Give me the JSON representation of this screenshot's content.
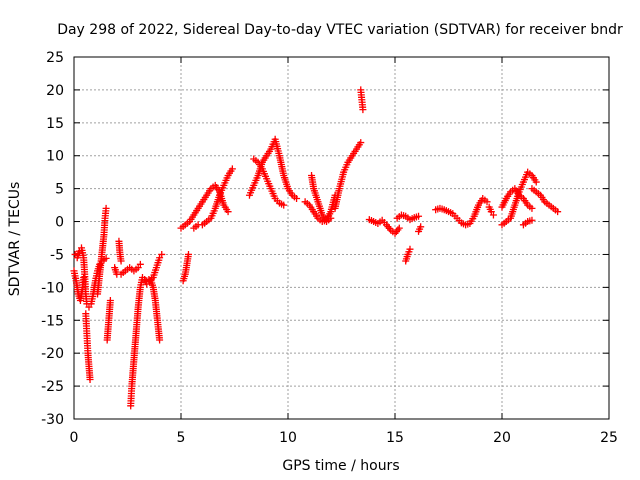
{
  "chart_data": {
    "type": "scatter",
    "title": "Day 298 of 2022, Sidereal Day-to-day VTEC variation (SDTVAR) for receiver bndr",
    "xlabel": "GPS time / hours",
    "ylabel": "SDTVAR / TECUs",
    "xlim": [
      0,
      25
    ],
    "ylim": [
      -30,
      25
    ],
    "xticks": [
      0,
      5,
      10,
      15,
      20,
      25
    ],
    "yticks": [
      -30,
      -25,
      -20,
      -15,
      -10,
      -5,
      0,
      5,
      10,
      15,
      20,
      25
    ],
    "grid": true,
    "marker": "+",
    "color": "#ff0000",
    "segments": [
      {
        "name": "s1",
        "points": [
          [
            0.0,
            -7.5
          ],
          [
            0.1,
            -9
          ],
          [
            0.2,
            -11
          ],
          [
            0.3,
            -12
          ],
          [
            0.4,
            -10
          ],
          [
            0.45,
            -8.5
          ]
        ]
      },
      {
        "name": "s2",
        "points": [
          [
            0.05,
            -5
          ],
          [
            0.15,
            -5.5
          ],
          [
            0.25,
            -4.5
          ],
          [
            0.35,
            -4
          ],
          [
            0.45,
            -5.5
          ],
          [
            0.5,
            -8
          ],
          [
            0.55,
            -11
          ],
          [
            0.6,
            -12.5
          ],
          [
            0.7,
            -13
          ],
          [
            0.8,
            -12.5
          ],
          [
            0.9,
            -11
          ],
          [
            1.0,
            -9
          ],
          [
            1.1,
            -7.5
          ],
          [
            1.2,
            -6.5
          ],
          [
            1.3,
            -6
          ],
          [
            1.4,
            -5.8
          ],
          [
            1.5,
            -5.6
          ]
        ]
      },
      {
        "name": "s3",
        "points": [
          [
            0.55,
            -14
          ],
          [
            0.6,
            -17
          ],
          [
            0.65,
            -20
          ],
          [
            0.7,
            -22
          ],
          [
            0.75,
            -24
          ]
        ]
      },
      {
        "name": "s4",
        "points": [
          [
            1.1,
            -11
          ],
          [
            1.2,
            -8
          ],
          [
            1.3,
            -5
          ],
          [
            1.4,
            -2
          ],
          [
            1.45,
            0.5
          ],
          [
            1.5,
            2
          ]
        ]
      },
      {
        "name": "s5",
        "points": [
          [
            1.55,
            -18
          ],
          [
            1.6,
            -16
          ],
          [
            1.65,
            -14
          ],
          [
            1.7,
            -12
          ]
        ]
      },
      {
        "name": "s6",
        "points": [
          [
            1.9,
            -7
          ],
          [
            2.0,
            -8
          ],
          [
            2.2,
            -8
          ],
          [
            2.4,
            -7.5
          ],
          [
            2.6,
            -7
          ],
          [
            2.8,
            -7.5
          ],
          [
            3.0,
            -7
          ],
          [
            3.1,
            -6.5
          ]
        ]
      },
      {
        "name": "s7",
        "points": [
          [
            2.1,
            -3
          ],
          [
            2.15,
            -5
          ],
          [
            2.2,
            -6
          ]
        ]
      },
      {
        "name": "s8",
        "points": [
          [
            2.65,
            -28
          ],
          [
            2.7,
            -25
          ],
          [
            2.8,
            -21
          ],
          [
            2.9,
            -17
          ],
          [
            3.0,
            -13
          ],
          [
            3.1,
            -10
          ],
          [
            3.2,
            -8.5
          ],
          [
            3.3,
            -8.8
          ],
          [
            3.4,
            -9.5
          ]
        ]
      },
      {
        "name": "s9",
        "points": [
          [
            3.4,
            -9
          ],
          [
            3.5,
            -8.8
          ],
          [
            3.6,
            -9
          ],
          [
            3.7,
            -10
          ],
          [
            3.8,
            -12
          ],
          [
            3.9,
            -15
          ],
          [
            4.0,
            -18
          ]
        ]
      },
      {
        "name": "s10",
        "points": [
          [
            3.55,
            -9
          ],
          [
            3.7,
            -8.5
          ],
          [
            3.85,
            -7
          ],
          [
            4.0,
            -5.5
          ],
          [
            4.1,
            -5
          ]
        ]
      },
      {
        "name": "s11",
        "points": [
          [
            5.0,
            -1.0
          ],
          [
            5.2,
            -0.5
          ],
          [
            5.4,
            0
          ],
          [
            5.6,
            1
          ],
          [
            5.8,
            2
          ],
          [
            6.0,
            3
          ],
          [
            6.2,
            4
          ],
          [
            6.4,
            5
          ],
          [
            6.6,
            5.5
          ],
          [
            6.8,
            4.5
          ],
          [
            7.0,
            2.5
          ],
          [
            7.2,
            1.5
          ]
        ]
      },
      {
        "name": "s12",
        "points": [
          [
            5.6,
            -1
          ],
          [
            5.8,
            -0.5
          ],
          [
            6.0,
            -0.5
          ],
          [
            6.2,
            0
          ],
          [
            6.4,
            0.5
          ],
          [
            6.6,
            2
          ],
          [
            6.8,
            4
          ],
          [
            7.0,
            5.5
          ],
          [
            7.2,
            7
          ],
          [
            7.4,
            8
          ]
        ]
      },
      {
        "name": "s13",
        "points": [
          [
            5.1,
            -9
          ],
          [
            5.2,
            -8
          ],
          [
            5.3,
            -6
          ],
          [
            5.35,
            -5
          ]
        ]
      },
      {
        "name": "s14",
        "points": [
          [
            8.2,
            4
          ],
          [
            8.4,
            5.5
          ],
          [
            8.6,
            7
          ],
          [
            8.8,
            9
          ],
          [
            9.0,
            10
          ],
          [
            9.2,
            11
          ],
          [
            9.4,
            12.5
          ],
          [
            9.6,
            10
          ],
          [
            9.8,
            7
          ],
          [
            10.0,
            5
          ],
          [
            10.2,
            4
          ],
          [
            10.4,
            3.5
          ]
        ]
      },
      {
        "name": "s15",
        "points": [
          [
            8.4,
            9.5
          ],
          [
            8.6,
            9
          ],
          [
            8.8,
            8
          ],
          [
            9.0,
            6.5
          ],
          [
            9.2,
            5
          ],
          [
            9.4,
            3.5
          ],
          [
            9.6,
            2.8
          ],
          [
            9.8,
            2.5
          ]
        ]
      },
      {
        "name": "s16",
        "points": [
          [
            10.8,
            3.0
          ],
          [
            11.0,
            2.5
          ],
          [
            11.2,
            1.5
          ],
          [
            11.4,
            0.5
          ],
          [
            11.6,
            0
          ],
          [
            11.8,
            0.2
          ],
          [
            12.0,
            1.5
          ],
          [
            12.2,
            4
          ]
        ]
      },
      {
        "name": "s17",
        "points": [
          [
            11.1,
            7
          ],
          [
            11.2,
            5
          ],
          [
            11.4,
            3
          ],
          [
            11.6,
            1
          ],
          [
            11.8,
            0
          ],
          [
            12.0,
            0.5
          ]
        ]
      },
      {
        "name": "s18",
        "points": [
          [
            12.2,
            2
          ],
          [
            12.4,
            5
          ],
          [
            12.6,
            7.5
          ],
          [
            12.8,
            9
          ],
          [
            13.0,
            10
          ],
          [
            13.2,
            11
          ],
          [
            13.4,
            12
          ]
        ]
      },
      {
        "name": "s19",
        "points": [
          [
            13.4,
            20
          ],
          [
            13.45,
            18.5
          ],
          [
            13.5,
            17
          ]
        ]
      },
      {
        "name": "s20",
        "points": [
          [
            13.8,
            0.3
          ],
          [
            14.0,
            0
          ],
          [
            14.2,
            -0.3
          ],
          [
            14.4,
            0.2
          ],
          [
            14.6,
            -0.5
          ],
          [
            14.8,
            -1.3
          ],
          [
            15.0,
            -1.8
          ],
          [
            15.2,
            -1
          ]
        ]
      },
      {
        "name": "s21",
        "points": [
          [
            15.1,
            0.5
          ],
          [
            15.3,
            1
          ],
          [
            15.5,
            0.8
          ],
          [
            15.7,
            0.3
          ],
          [
            15.9,
            0.6
          ],
          [
            16.1,
            0.8
          ]
        ]
      },
      {
        "name": "s22",
        "points": [
          [
            15.5,
            -6
          ],
          [
            15.6,
            -5
          ],
          [
            15.7,
            -4.2
          ]
        ]
      },
      {
        "name": "s23",
        "points": [
          [
            16.1,
            -1.5
          ],
          [
            16.2,
            -0.8
          ]
        ]
      },
      {
        "name": "s24",
        "points": [
          [
            16.9,
            1.8
          ],
          [
            17.1,
            2
          ],
          [
            17.3,
            1.8
          ],
          [
            17.5,
            1.5
          ],
          [
            17.7,
            1.2
          ],
          [
            17.9,
            0.5
          ],
          [
            18.1,
            -0.2
          ],
          [
            18.3,
            -0.5
          ],
          [
            18.5,
            -0.3
          ],
          [
            18.7,
            0.8
          ],
          [
            18.9,
            2.5
          ],
          [
            19.1,
            3.5
          ],
          [
            19.3,
            3
          ]
        ]
      },
      {
        "name": "s25",
        "points": [
          [
            19.4,
            2.2
          ],
          [
            19.5,
            1.5
          ],
          [
            19.6,
            1.0
          ]
        ]
      },
      {
        "name": "s26",
        "points": [
          [
            20.0,
            -0.5
          ],
          [
            20.2,
            0
          ],
          [
            20.4,
            0.5
          ],
          [
            20.6,
            2.5
          ],
          [
            20.8,
            4.5
          ],
          [
            21.0,
            6
          ],
          [
            21.2,
            7.5
          ],
          [
            21.4,
            7
          ],
          [
            21.6,
            6
          ]
        ]
      },
      {
        "name": "s27",
        "points": [
          [
            20.0,
            2.2
          ],
          [
            20.2,
            3.5
          ],
          [
            20.4,
            4.5
          ],
          [
            20.6,
            5
          ],
          [
            20.8,
            4
          ],
          [
            21.0,
            3.5
          ],
          [
            21.2,
            2.5
          ],
          [
            21.4,
            2
          ]
        ]
      },
      {
        "name": "s28",
        "points": [
          [
            21.4,
            5
          ],
          [
            21.6,
            4.5
          ],
          [
            21.8,
            4
          ],
          [
            22.0,
            3
          ],
          [
            22.2,
            2.5
          ],
          [
            22.4,
            2
          ],
          [
            22.6,
            1.5
          ]
        ]
      },
      {
        "name": "s29",
        "points": [
          [
            21.0,
            -0.5
          ],
          [
            21.2,
            0
          ],
          [
            21.4,
            0.2
          ]
        ]
      }
    ]
  }
}
